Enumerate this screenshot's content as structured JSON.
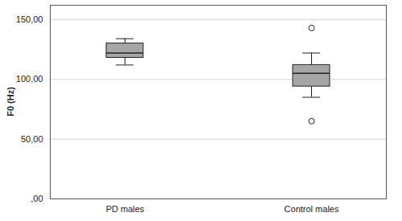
{
  "chart_data": {
    "type": "box",
    "y_label": "F0 (Hz)",
    "categories": [
      "PD males",
      "Control males"
    ],
    "min": [
      112,
      85
    ],
    "q1": [
      118,
      94
    ],
    "median": [
      122,
      105
    ],
    "q3": [
      130,
      112
    ],
    "max": [
      134,
      122
    ],
    "outliers": [
      [],
      [
        143,
        65
      ]
    ],
    "color": "#a6a6a6",
    "ylim": [
      0,
      162
    ],
    "yticks": [
      {
        "value": 0,
        "label": ",00"
      },
      {
        "value": 50,
        "label": "50,00"
      },
      {
        "value": 100,
        "label": "100,00"
      },
      {
        "value": 150,
        "label": "150,00"
      }
    ],
    "grid": true
  }
}
